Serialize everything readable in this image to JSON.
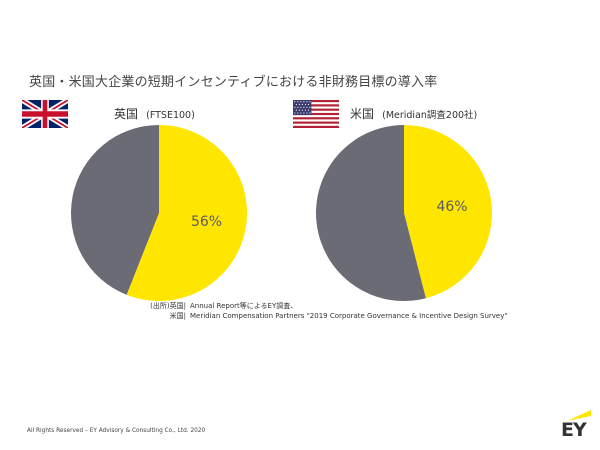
{
  "title": "英国・米国大企業の短期インセンティブにおける非財務目標の導入率",
  "panels": {
    "uk": {
      "country": "英国",
      "note": "(FTSE100)",
      "flag": "uk-flag-icon"
    },
    "us": {
      "country": "米国",
      "note": "(Meridian調査200社)",
      "flag": "us-flag-icon"
    }
  },
  "chart_data": [
    {
      "type": "pie",
      "title": "",
      "slices": [
        {
          "name": "",
          "value": 56,
          "label": "56%",
          "color": "#ffe600"
        },
        {
          "name": "",
          "value": 44,
          "label": "",
          "color": "#6b6b75"
        }
      ]
    },
    {
      "type": "pie",
      "title": "",
      "slices": [
        {
          "name": "",
          "value": 46,
          "label": "46%",
          "color": "#ffe600"
        },
        {
          "name": "",
          "value": 54,
          "label": "",
          "color": "#6b6b75"
        }
      ]
    }
  ],
  "source": {
    "prefix": "(出所)",
    "uk_label": "英国",
    "uk_text": "Annual Report等によるEY調査、",
    "us_label": "米国",
    "us_text": "Meridian Compensation Partners \"2019 Corporate Governance & Incentive Design Survey\""
  },
  "footer": "All Rights Reserved – EY Advisory & Consulting Co., Ltd. 2020",
  "logo": {
    "text": "EY",
    "accent": "#ffe600"
  }
}
